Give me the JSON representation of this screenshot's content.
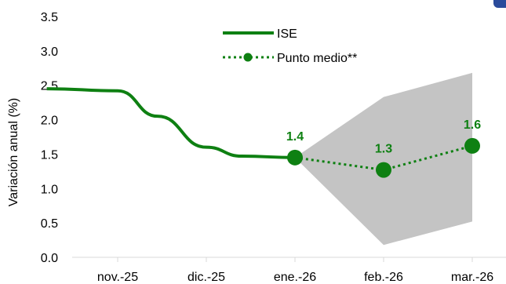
{
  "chart_data": {
    "type": "line",
    "ylabel": "Variación anual (%)",
    "ylim": [
      0,
      3.5
    ],
    "yticks": [
      "0.0",
      "0.5",
      "1.0",
      "1.5",
      "2.0",
      "2.5",
      "3.0",
      "3.5"
    ],
    "categories": [
      "nov.-25",
      "dic.-25",
      "ene.-26",
      "feb.-26",
      "mar.-26"
    ],
    "series": [
      {
        "name": "ISE",
        "x": [
          -0.8,
          0,
          0.45,
          1,
          1.4,
          2
        ],
        "values": [
          2.45,
          2.42,
          2.05,
          1.6,
          1.47,
          1.45
        ]
      },
      {
        "name": "Punto medio**",
        "x": [
          2,
          3,
          4
        ],
        "values": [
          1.45,
          1.27,
          1.62
        ],
        "data_labels": [
          "1.4",
          "1.3",
          "1.6"
        ]
      }
    ],
    "band": {
      "x": [
        2,
        3,
        4
      ],
      "upper": [
        1.45,
        2.33,
        2.68
      ],
      "lower": [
        1.45,
        0.18,
        0.52
      ]
    },
    "legend_position": "top-center",
    "grid": false
  },
  "colors": {
    "series": "#0e8012",
    "band": "#c4c4c4",
    "axis": "#d9d9d9",
    "corner": "#2a4b9b"
  }
}
